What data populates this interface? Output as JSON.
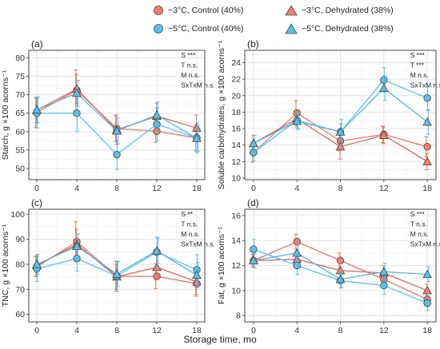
{
  "colors": {
    "control": "#f08070",
    "dehydrated": "#5bc0e8",
    "line_minus3_control": "#e8766a",
    "line_minus3_dehy": "#d9655a",
    "line_minus5_control": "#5cc4ec",
    "line_minus5_dehy": "#4fb8e4",
    "grid": "#e6e6e6",
    "err_minus3_control": "#b97b3f",
    "err_minus3_dehy": "#e06b5e",
    "err_minus5": "#4fb3e3"
  },
  "legend": [
    {
      "label": "−3°C, Control (40%)",
      "shape": "circle",
      "fill": "#f08070"
    },
    {
      "label": "−3°C, Dehydrated (38%)",
      "shape": "triangle",
      "fill": "#f08070"
    },
    {
      "label": "−5°C, Control (40%)",
      "shape": "circle",
      "fill": "#5bc0e8"
    },
    {
      "label": "−5°C, Dehydrated (38%)",
      "shape": "triangle",
      "fill": "#5bc0e8"
    }
  ],
  "xlabel": "Storage time, mo",
  "chart_data": [
    {
      "type": "line",
      "panel": "(a)",
      "ylabel": "Starch, g ×100 acorns⁻¹",
      "x": [
        0,
        4,
        8,
        12,
        18
      ],
      "ylim": [
        47,
        82
      ],
      "yticks": [
        50,
        55,
        60,
        65,
        70,
        75,
        80
      ],
      "stats": [
        "S ***",
        "T n.s.",
        "M n.s.",
        "SxTxM n.s."
      ],
      "series": [
        {
          "name": "−3°C, Control (40%)",
          "values": [
            65.2,
            71.2,
            60.8,
            60.1,
            58.3
          ],
          "err": [
            4,
            5.5,
            3.5,
            3,
            3.5
          ]
        },
        {
          "name": "−3°C, Dehydrated (38%)",
          "values": [
            65.8,
            71.5,
            60.5,
            64.2,
            61.0
          ],
          "err": [
            3.5,
            4,
            4,
            3.5,
            3.5
          ]
        },
        {
          "name": "−5°C, Control (40%)",
          "values": [
            65.0,
            65.0,
            53.8,
            62.0,
            58.3
          ],
          "err": [
            4,
            5,
            4,
            4.5,
            4
          ]
        },
        {
          "name": "−5°C, Dehydrated (38%)",
          "values": [
            65.9,
            70.4,
            60.2,
            64.5,
            58.2
          ],
          "err": [
            3.5,
            3.5,
            3.5,
            3.5,
            3.5
          ]
        }
      ]
    },
    {
      "type": "line",
      "panel": "(b)",
      "ylabel": "Soluble carbohydrates, g ×100 acorns⁻¹",
      "x": [
        0,
        4,
        8,
        12,
        18
      ],
      "ylim": [
        9.8,
        25.5
      ],
      "yticks": [
        10,
        12,
        14,
        16,
        18,
        20,
        22,
        24
      ],
      "stats": [
        "S ***",
        "T ***",
        "M n.s.",
        "SxTxM n.s."
      ],
      "series": [
        {
          "name": "−3°C, Control (40%)",
          "values": [
            13.1,
            17.9,
            14.5,
            15.3,
            13.8
          ],
          "err": [
            1.2,
            1.5,
            1.2,
            1.0,
            1.2
          ]
        },
        {
          "name": "−3°C, Dehydrated (38%)",
          "values": [
            14.2,
            17.2,
            13.8,
            15.2,
            12.0
          ],
          "err": [
            1.0,
            1.0,
            1.5,
            1.0,
            1.0
          ]
        },
        {
          "name": "−5°C, Control (40%)",
          "values": [
            13.1,
            17.0,
            15.6,
            21.9,
            19.7
          ],
          "err": [
            1.0,
            1.0,
            1.0,
            1.5,
            1.5
          ]
        },
        {
          "name": "−5°C, Dehydrated (38%)",
          "values": [
            14.2,
            16.9,
            15.6,
            20.9,
            16.8
          ],
          "err": [
            1.0,
            1.0,
            1.5,
            1.5,
            1.5
          ]
        }
      ]
    },
    {
      "type": "line",
      "panel": "(c)",
      "ylabel": "TNC, g ×100 acorns⁻¹",
      "x": [
        0,
        4,
        8,
        12,
        18
      ],
      "ylim": [
        57,
        102
      ],
      "yticks": [
        60,
        70,
        80,
        90,
        100
      ],
      "stats": [
        "S **",
        "T n.s.",
        "M n.s.",
        "SxTxM n.s."
      ],
      "series": [
        {
          "name": "−3°C, Control (40%)",
          "values": [
            79.0,
            89.0,
            75.2,
            75.2,
            72.3
          ],
          "err": [
            4,
            8,
            6,
            5,
            5
          ]
        },
        {
          "name": "−3°C, Dehydrated (38%)",
          "values": [
            79.5,
            88.0,
            75.0,
            78.8,
            73.0
          ],
          "err": [
            4,
            6,
            5,
            5,
            5
          ]
        },
        {
          "name": "−5°C, Control (40%)",
          "values": [
            78.2,
            82.3,
            75.3,
            84.9,
            77.8
          ],
          "err": [
            5,
            5,
            6,
            6,
            6
          ]
        },
        {
          "name": "−5°C, Dehydrated (38%)",
          "values": [
            80.0,
            87.2,
            76.1,
            85.4,
            75.7
          ],
          "err": [
            4,
            5,
            5,
            5,
            5
          ]
        }
      ]
    },
    {
      "type": "line",
      "panel": "(d)",
      "ylabel": "Fat, g ×100 acorns⁻¹",
      "x": [
        0,
        4,
        8,
        12,
        18
      ],
      "ylim": [
        7.5,
        16.5
      ],
      "yticks": [
        8,
        10,
        12,
        14,
        16
      ],
      "stats": [
        "S ***",
        "T n.s.",
        "M n.s.",
        "SxTxM n.s."
      ],
      "series": [
        {
          "name": "−3°C, Control (40%)",
          "values": [
            12.4,
            13.9,
            12.4,
            10.9,
            9.3
          ],
          "err": [
            0.5,
            0.6,
            0.6,
            0.6,
            0.5
          ]
        },
        {
          "name": "−3°C, Dehydrated (38%)",
          "values": [
            12.4,
            12.5,
            11.6,
            11.4,
            10.0
          ],
          "err": [
            0.5,
            0.6,
            0.6,
            0.6,
            0.5
          ]
        },
        {
          "name": "−5°C, Control (40%)",
          "values": [
            13.3,
            12.0,
            10.8,
            10.4,
            9.0
          ],
          "err": [
            0.8,
            0.7,
            0.6,
            0.7,
            0.6
          ]
        },
        {
          "name": "−5°C, Dehydrated (38%)",
          "values": [
            12.4,
            13.0,
            10.9,
            11.5,
            11.3
          ],
          "err": [
            0.6,
            0.7,
            0.6,
            0.7,
            0.6
          ]
        }
      ]
    }
  ]
}
